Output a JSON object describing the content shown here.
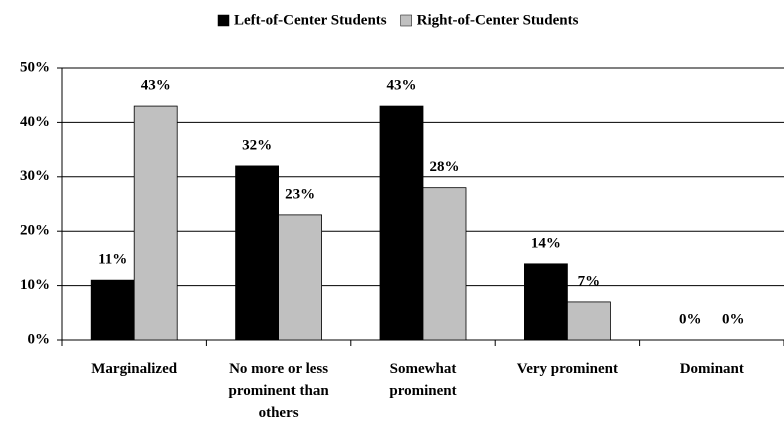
{
  "chart_data": {
    "type": "bar",
    "categories": [
      "Marginalized",
      "No more or less prominent than others",
      "Somewhat prominent",
      "Very prominent",
      "Dominant"
    ],
    "series": [
      {
        "name": "Left-of-Center Students",
        "color": "#000000",
        "values": [
          11,
          32,
          43,
          14,
          0
        ],
        "value_labels": [
          "11%",
          "32%",
          "43%",
          "14%",
          "0%"
        ]
      },
      {
        "name": "Right-of-Center Students",
        "color": "#c0c0c0",
        "values": [
          43,
          23,
          28,
          7,
          0
        ],
        "value_labels": [
          "43%",
          "23%",
          "28%",
          "7%",
          "0%"
        ]
      }
    ],
    "ylim": [
      0,
      50
    ],
    "yticks": [
      {
        "value": 0,
        "label": "0%"
      },
      {
        "value": 10,
        "label": "10%"
      },
      {
        "value": 20,
        "label": "20%"
      },
      {
        "value": 30,
        "label": "30%"
      },
      {
        "value": 40,
        "label": "40%"
      },
      {
        "value": 50,
        "label": "50%"
      }
    ],
    "grid": true,
    "legend": "top"
  }
}
